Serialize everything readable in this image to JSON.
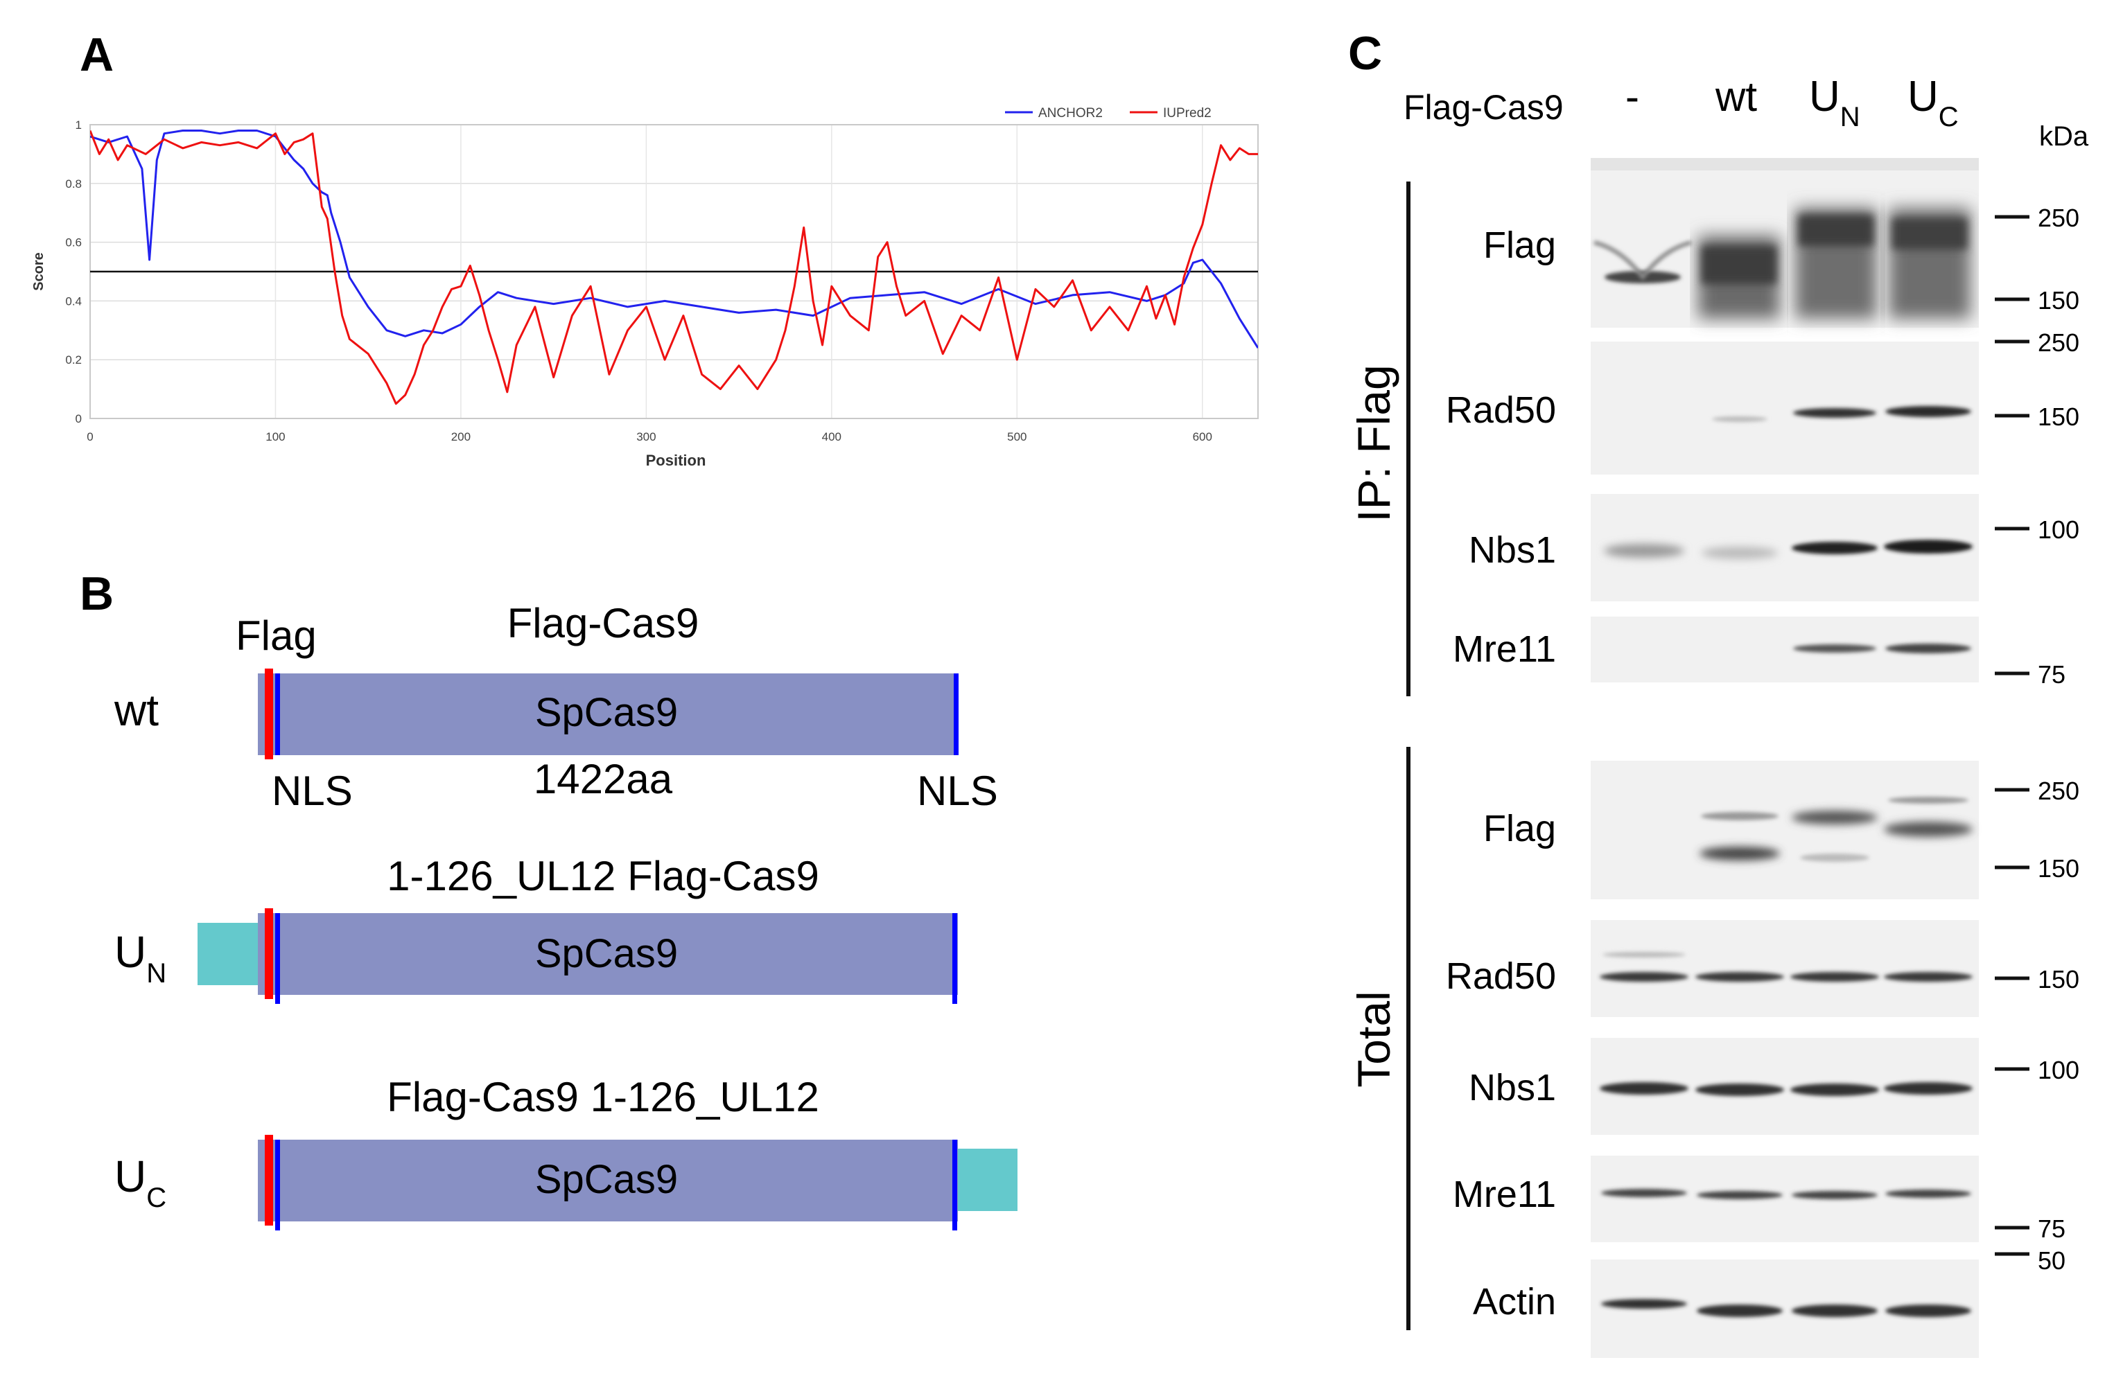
{
  "panels": {
    "a": "A",
    "b": "B",
    "c": "C"
  },
  "colors": {
    "anchor2": "#2222ee",
    "iupred2": "#ee1111",
    "cas9_body": "#8890c4",
    "ul12": "#64c9cc",
    "flag_tag": "#ff0000",
    "nls_bar": "#0000ff",
    "blot_bg": "#f1f1f1",
    "band": "#303030"
  },
  "chart_data": {
    "type": "line",
    "xlabel": "Position",
    "ylabel": "Score",
    "xlim": [
      0,
      630
    ],
    "ylim": [
      0,
      1
    ],
    "xticks": [
      "0",
      "100",
      "200",
      "300",
      "400",
      "500",
      "600"
    ],
    "yticks": [
      "0",
      "0.2",
      "0.4",
      "0.6",
      "0.8",
      "1"
    ],
    "threshold": 0.5,
    "grid": true,
    "legend_position": "top-right",
    "series": [
      {
        "name": "ANCHOR2",
        "color": "#2222ee",
        "x": [
          0,
          10,
          20,
          28,
          32,
          36,
          40,
          50,
          60,
          70,
          80,
          90,
          100,
          105,
          110,
          115,
          120,
          125,
          128,
          130,
          135,
          140,
          150,
          160,
          170,
          180,
          190,
          200,
          210,
          220,
          230,
          250,
          270,
          290,
          310,
          330,
          350,
          370,
          390,
          410,
          430,
          450,
          470,
          490,
          510,
          530,
          550,
          570,
          580,
          590,
          595,
          600,
          610,
          620,
          630
        ],
        "y": [
          0.96,
          0.94,
          0.96,
          0.85,
          0.54,
          0.88,
          0.97,
          0.98,
          0.98,
          0.97,
          0.98,
          0.98,
          0.96,
          0.92,
          0.88,
          0.85,
          0.8,
          0.77,
          0.76,
          0.7,
          0.6,
          0.48,
          0.38,
          0.3,
          0.28,
          0.3,
          0.29,
          0.32,
          0.38,
          0.43,
          0.41,
          0.39,
          0.41,
          0.38,
          0.4,
          0.38,
          0.36,
          0.37,
          0.35,
          0.41,
          0.42,
          0.43,
          0.39,
          0.44,
          0.39,
          0.42,
          0.43,
          0.4,
          0.42,
          0.46,
          0.53,
          0.54,
          0.46,
          0.34,
          0.24
        ]
      },
      {
        "name": "IUPred2",
        "color": "#ee1111",
        "x": [
          0,
          5,
          10,
          15,
          20,
          30,
          40,
          50,
          60,
          70,
          80,
          90,
          100,
          105,
          110,
          115,
          120,
          125,
          128,
          132,
          136,
          140,
          150,
          160,
          165,
          170,
          175,
          180,
          185,
          190,
          195,
          200,
          205,
          210,
          215,
          220,
          225,
          230,
          240,
          250,
          260,
          270,
          280,
          290,
          300,
          310,
          320,
          330,
          340,
          350,
          360,
          370,
          375,
          380,
          385,
          390,
          395,
          400,
          410,
          420,
          425,
          430,
          435,
          440,
          450,
          460,
          470,
          480,
          490,
          500,
          510,
          520,
          530,
          540,
          550,
          560,
          570,
          575,
          580,
          585,
          590,
          595,
          600,
          605,
          610,
          615,
          620,
          625,
          630
        ],
        "y": [
          0.98,
          0.9,
          0.95,
          0.88,
          0.93,
          0.9,
          0.95,
          0.92,
          0.94,
          0.93,
          0.94,
          0.92,
          0.97,
          0.9,
          0.94,
          0.95,
          0.97,
          0.72,
          0.68,
          0.5,
          0.35,
          0.27,
          0.22,
          0.12,
          0.05,
          0.08,
          0.15,
          0.25,
          0.3,
          0.38,
          0.44,
          0.45,
          0.52,
          0.42,
          0.3,
          0.2,
          0.09,
          0.25,
          0.38,
          0.14,
          0.35,
          0.45,
          0.15,
          0.3,
          0.38,
          0.2,
          0.35,
          0.15,
          0.1,
          0.18,
          0.1,
          0.2,
          0.3,
          0.45,
          0.65,
          0.4,
          0.25,
          0.45,
          0.35,
          0.3,
          0.55,
          0.6,
          0.45,
          0.35,
          0.4,
          0.22,
          0.35,
          0.3,
          0.48,
          0.2,
          0.44,
          0.38,
          0.47,
          0.3,
          0.38,
          0.3,
          0.45,
          0.34,
          0.42,
          0.32,
          0.48,
          0.58,
          0.66,
          0.8,
          0.93,
          0.88,
          0.92,
          0.9,
          0.9
        ]
      }
    ]
  },
  "constructs": {
    "wt": {
      "label": "wt",
      "title": "Flag-Cas9",
      "flag_label": "Flag",
      "body_label": "SpCas9",
      "nls_left": "NLS",
      "length_label": "1422aa",
      "nls_right": "NLS"
    },
    "un": {
      "label": "U",
      "sub": "N",
      "title": "1-126_UL12 Flag-Cas9",
      "body_label": "SpCas9"
    },
    "uc": {
      "label": "U",
      "sub": "C",
      "title": "Flag-Cas9 1-126_UL12",
      "body_label": "SpCas9"
    }
  },
  "blot": {
    "header_label": "Flag-Cas9",
    "lanes": [
      {
        "main": "-",
        "sub": ""
      },
      {
        "main": "wt",
        "sub": ""
      },
      {
        "main": "U",
        "sub": "N"
      },
      {
        "main": "U",
        "sub": "C"
      }
    ],
    "kda_label": "kDa",
    "ip_group_label": "IP: Flag",
    "total_group_label": "Total",
    "ip_rows": [
      {
        "label": "Flag",
        "markers": [
          "250",
          "150"
        ]
      },
      {
        "label": "Rad50",
        "markers": [
          "250",
          "150"
        ]
      },
      {
        "label": "Nbs1",
        "markers": [
          "100"
        ]
      },
      {
        "label": "Mre11",
        "markers": [
          "75"
        ]
      }
    ],
    "total_rows": [
      {
        "label": "Flag",
        "markers": [
          "250",
          "150"
        ]
      },
      {
        "label": "Rad50",
        "markers": [
          "150"
        ]
      },
      {
        "label": "Nbs1",
        "markers": [
          "100"
        ]
      },
      {
        "label": "Mre11",
        "markers": [
          "75",
          "50"
        ]
      },
      {
        "label": "Actin",
        "markers": []
      }
    ]
  }
}
